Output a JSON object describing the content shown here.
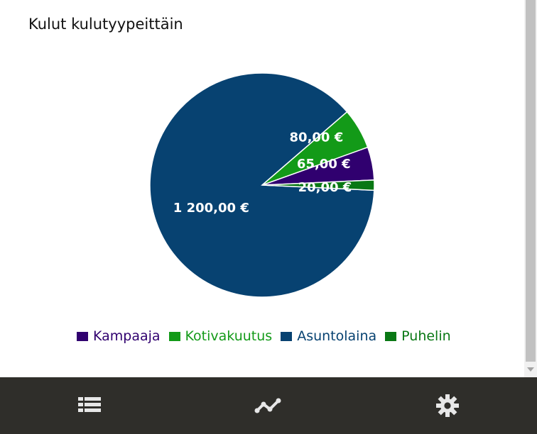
{
  "title": "Kulut kulutyypeittäin",
  "chart_data": {
    "type": "pie",
    "series": [
      {
        "name": "Kampaaja",
        "value": 65,
        "label": "65,00 €",
        "color": "#30006f"
      },
      {
        "name": "Kotivakuutus",
        "value": 80,
        "label": "80,00 €",
        "color": "#139a18"
      },
      {
        "name": "Asuntolaina",
        "value": 1200,
        "label": "1 200,00 €",
        "color": "#074271"
      },
      {
        "name": "Puhelin",
        "value": 20,
        "label": "20,00 €",
        "color": "#097814"
      }
    ],
    "legend_position": "bottom"
  },
  "bottom_nav": {
    "items": [
      {
        "name": "list",
        "icon": "list-icon"
      },
      {
        "name": "trend",
        "icon": "trend-icon"
      },
      {
        "name": "settings",
        "icon": "gear-icon"
      }
    ],
    "background_color": "#2f2e2a",
    "icon_color": "#e7e7e7"
  }
}
